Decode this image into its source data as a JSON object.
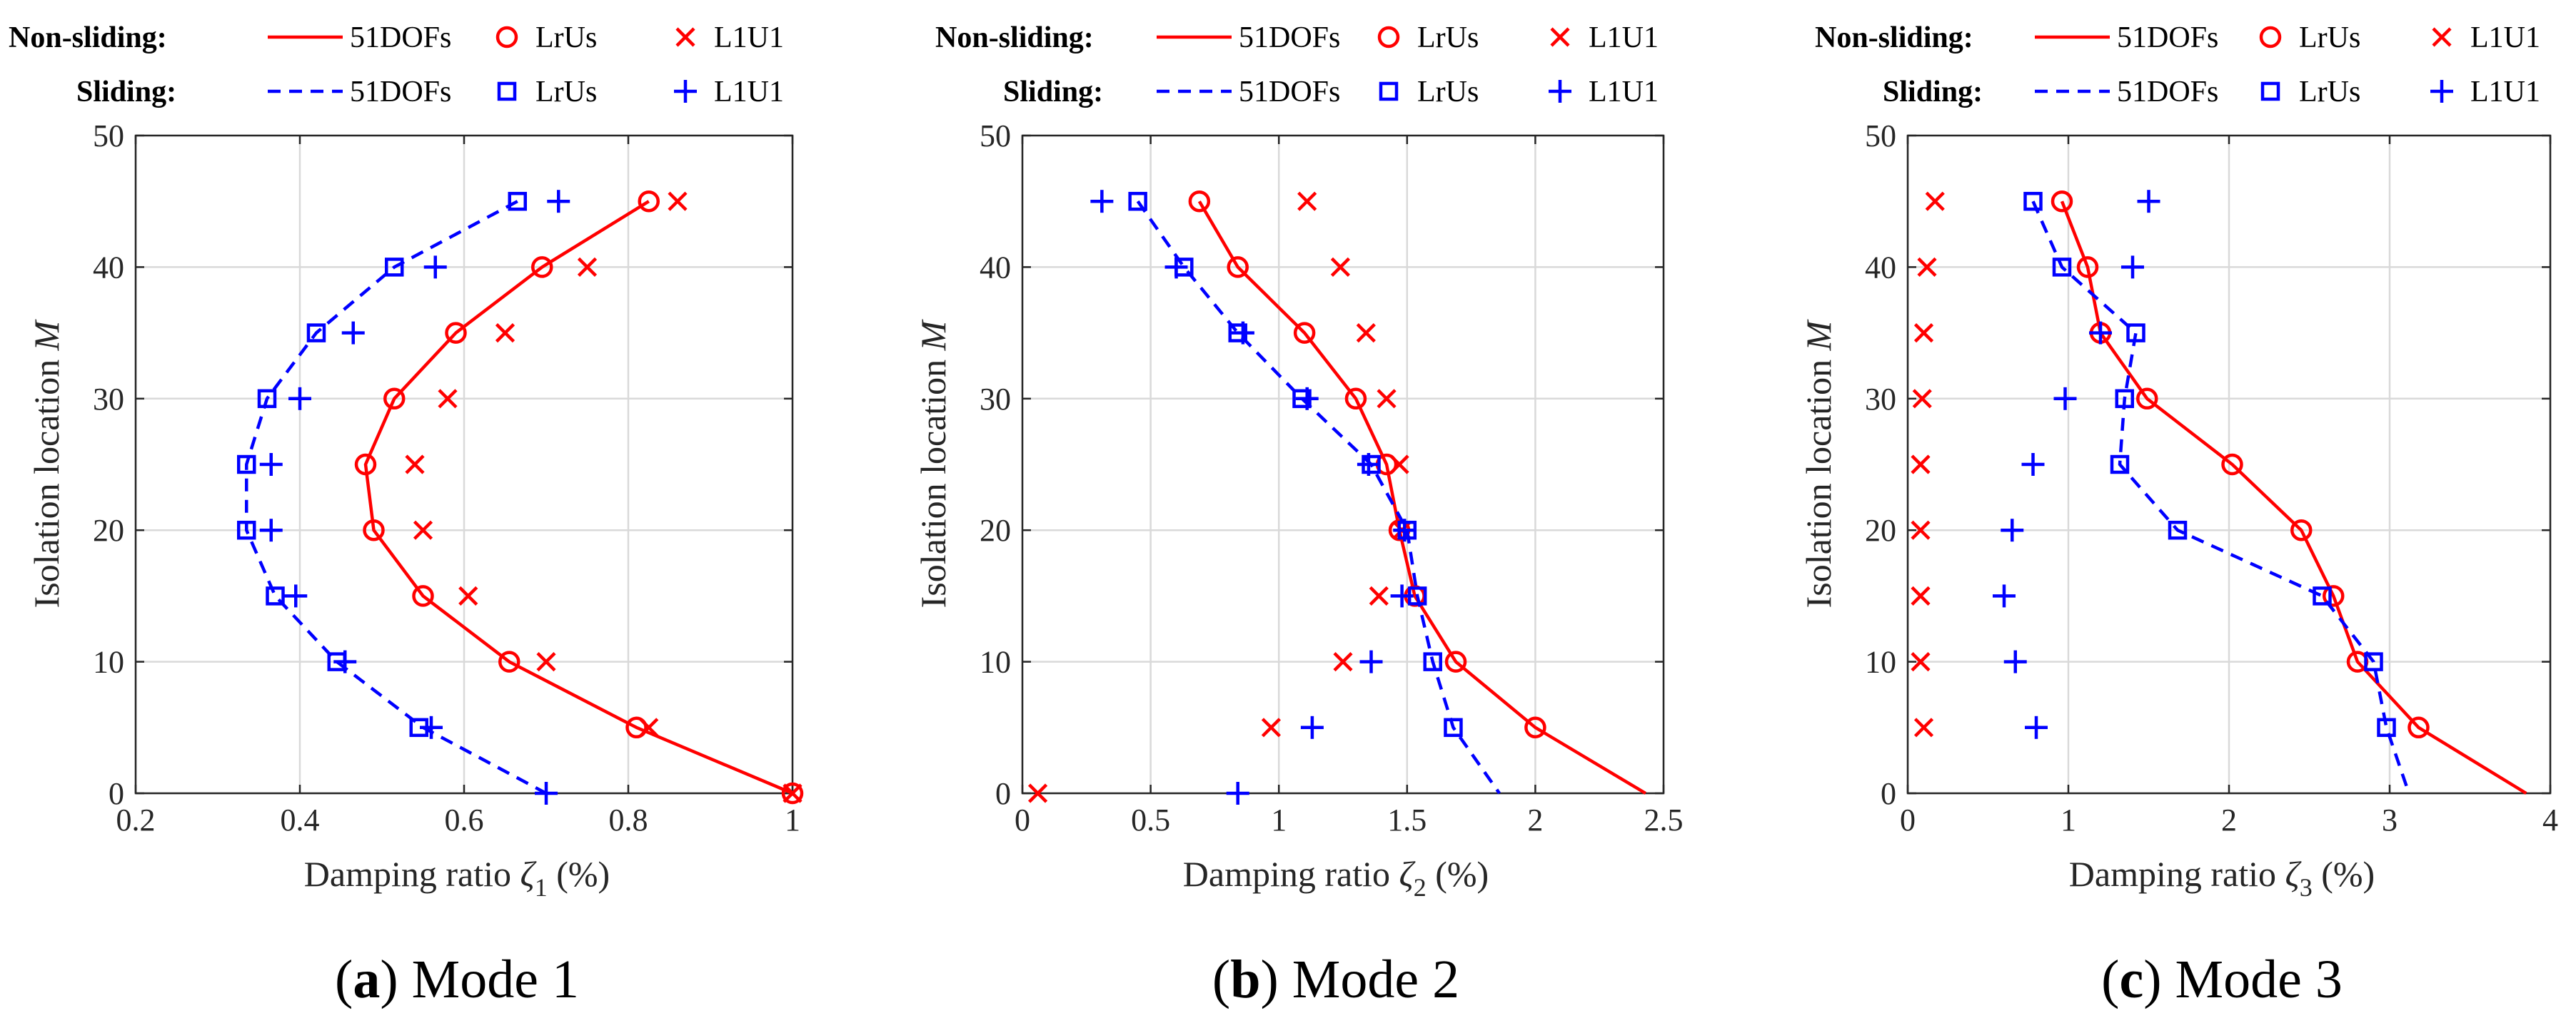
{
  "colors": {
    "non_sliding": "#ff0000",
    "sliding": "#0000ff",
    "axis": "#262626",
    "grid": "#d9d9d9"
  },
  "legend": {
    "non_sliding_header": "Non-sliding:",
    "sliding_header": "Sliding:",
    "series_labels": [
      "51DOFs",
      "LrUs",
      "L1U1"
    ]
  },
  "chart_data": [
    {
      "type": "line",
      "caption_letter": "a",
      "caption_text": "Mode 1",
      "xlabel": "Damping ratio",
      "xlabel_symbol": "ζ",
      "xlabel_subscript": "1",
      "xlabel_unit": "(%)",
      "ylabel": "Isolation location",
      "ylabel_symbol": "M",
      "xlim": [
        0.2,
        1.0
      ],
      "ylim": [
        0,
        50
      ],
      "xticks": [
        0.2,
        0.4,
        0.6,
        0.8,
        1.0
      ],
      "xtick_labels": [
        "0.2",
        "0.4",
        "0.6",
        "0.8",
        "1"
      ],
      "yticks": [
        0,
        10,
        20,
        30,
        40,
        50
      ],
      "ytick_labels": [
        "0",
        "10",
        "20",
        "30",
        "40",
        "50"
      ],
      "grid": true,
      "series": [
        {
          "name": "51DOFs",
          "group": "Non-sliding",
          "style": "solid-line",
          "points": [
            [
              0.825,
              45
            ],
            [
              0.695,
              40
            ],
            [
              0.59,
              35
            ],
            [
              0.515,
              30
            ],
            [
              0.48,
              25
            ],
            [
              0.49,
              20
            ],
            [
              0.55,
              15
            ],
            [
              0.655,
              10
            ],
            [
              0.81,
              5
            ],
            [
              1.0,
              0
            ]
          ]
        },
        {
          "name": "LrUs",
          "group": "Non-sliding",
          "style": "circle",
          "points": [
            [
              0.825,
              45
            ],
            [
              0.695,
              40
            ],
            [
              0.59,
              35
            ],
            [
              0.515,
              30
            ],
            [
              0.48,
              25
            ],
            [
              0.49,
              20
            ],
            [
              0.55,
              15
            ],
            [
              0.655,
              10
            ],
            [
              0.81,
              5
            ],
            [
              1.0,
              0
            ]
          ]
        },
        {
          "name": "L1U1",
          "group": "Non-sliding",
          "style": "x",
          "points": [
            [
              0.86,
              45
            ],
            [
              0.75,
              40
            ],
            [
              0.65,
              35
            ],
            [
              0.58,
              30
            ],
            [
              0.54,
              25
            ],
            [
              0.55,
              20
            ],
            [
              0.605,
              15
            ],
            [
              0.7,
              10
            ],
            [
              0.825,
              5
            ],
            [
              1.0,
              0
            ]
          ]
        },
        {
          "name": "51DOFs",
          "group": "Sliding",
          "style": "dashed-line",
          "points": [
            [
              0.665,
              45
            ],
            [
              0.515,
              40
            ],
            [
              0.42,
              35
            ],
            [
              0.36,
              30
            ],
            [
              0.335,
              25
            ],
            [
              0.335,
              20
            ],
            [
              0.37,
              15
            ],
            [
              0.445,
              10
            ],
            [
              0.55,
              5
            ],
            [
              0.7,
              0
            ]
          ]
        },
        {
          "name": "LrUs",
          "group": "Sliding",
          "style": "square",
          "points": [
            [
              0.665,
              45
            ],
            [
              0.515,
              40
            ],
            [
              0.42,
              35
            ],
            [
              0.36,
              30
            ],
            [
              0.335,
              25
            ],
            [
              0.335,
              20
            ],
            [
              0.37,
              15
            ],
            [
              0.445,
              10
            ],
            [
              0.545,
              5
            ]
          ]
        },
        {
          "name": "L1U1",
          "group": "Sliding",
          "style": "plus",
          "points": [
            [
              0.715,
              45
            ],
            [
              0.565,
              40
            ],
            [
              0.465,
              35
            ],
            [
              0.4,
              30
            ],
            [
              0.365,
              25
            ],
            [
              0.365,
              20
            ],
            [
              0.395,
              15
            ],
            [
              0.455,
              10
            ],
            [
              0.56,
              5
            ],
            [
              0.7,
              0
            ]
          ]
        }
      ]
    },
    {
      "type": "line",
      "caption_letter": "b",
      "caption_text": "Mode 2",
      "xlabel": "Damping ratio",
      "xlabel_symbol": "ζ",
      "xlabel_subscript": "2",
      "xlabel_unit": "(%)",
      "ylabel": "Isolation location",
      "ylabel_symbol": "M",
      "xlim": [
        0,
        2.5
      ],
      "ylim": [
        0,
        50
      ],
      "xticks": [
        0,
        0.5,
        1.0,
        1.5,
        2.0,
        2.5
      ],
      "xtick_labels": [
        "0",
        "0.5",
        "1",
        "1.5",
        "2",
        "2.5"
      ],
      "yticks": [
        0,
        10,
        20,
        30,
        40,
        50
      ],
      "ytick_labels": [
        "0",
        "10",
        "20",
        "30",
        "40",
        "50"
      ],
      "grid": true,
      "series": [
        {
          "name": "51DOFs",
          "group": "Non-sliding",
          "style": "solid-line",
          "points": [
            [
              0.69,
              45
            ],
            [
              0.84,
              40
            ],
            [
              1.1,
              35
            ],
            [
              1.3,
              30
            ],
            [
              1.42,
              25
            ],
            [
              1.47,
              20
            ],
            [
              1.53,
              15
            ],
            [
              1.69,
              10
            ],
            [
              2.0,
              5
            ],
            [
              2.43,
              0
            ]
          ]
        },
        {
          "name": "LrUs",
          "group": "Non-sliding",
          "style": "circle",
          "points": [
            [
              0.69,
              45
            ],
            [
              0.84,
              40
            ],
            [
              1.1,
              35
            ],
            [
              1.3,
              30
            ],
            [
              1.42,
              25
            ],
            [
              1.47,
              20
            ],
            [
              1.53,
              15
            ],
            [
              1.69,
              10
            ],
            [
              2.0,
              5
            ]
          ]
        },
        {
          "name": "L1U1",
          "group": "Non-sliding",
          "style": "x",
          "points": [
            [
              1.11,
              45
            ],
            [
              1.24,
              40
            ],
            [
              1.34,
              35
            ],
            [
              1.42,
              30
            ],
            [
              1.47,
              25
            ],
            [
              1.48,
              20
            ],
            [
              1.39,
              15
            ],
            [
              1.25,
              10
            ],
            [
              0.97,
              5
            ],
            [
              0.06,
              0
            ]
          ]
        },
        {
          "name": "51DOFs",
          "group": "Sliding",
          "style": "dashed-line",
          "points": [
            [
              0.45,
              45
            ],
            [
              0.63,
              40
            ],
            [
              0.84,
              35
            ],
            [
              1.09,
              30
            ],
            [
              1.36,
              25
            ],
            [
              1.5,
              20
            ],
            [
              1.54,
              15
            ],
            [
              1.6,
              10
            ],
            [
              1.68,
              5
            ],
            [
              1.86,
              0
            ]
          ]
        },
        {
          "name": "LrUs",
          "group": "Sliding",
          "style": "square",
          "points": [
            [
              0.45,
              45
            ],
            [
              0.63,
              40
            ],
            [
              0.84,
              35
            ],
            [
              1.09,
              30
            ],
            [
              1.36,
              25
            ],
            [
              1.5,
              20
            ],
            [
              1.54,
              15
            ],
            [
              1.6,
              10
            ],
            [
              1.68,
              5
            ]
          ]
        },
        {
          "name": "L1U1",
          "group": "Sliding",
          "style": "plus",
          "points": [
            [
              0.31,
              45
            ],
            [
              0.6,
              40
            ],
            [
              0.86,
              35
            ],
            [
              1.11,
              30
            ],
            [
              1.35,
              25
            ],
            [
              1.49,
              20
            ],
            [
              1.48,
              15
            ],
            [
              1.36,
              10
            ],
            [
              1.13,
              5
            ],
            [
              0.84,
              0
            ]
          ]
        }
      ]
    },
    {
      "type": "line",
      "caption_letter": "c",
      "caption_text": "Mode 3",
      "xlabel": "Damping ratio",
      "xlabel_symbol": "ζ",
      "xlabel_subscript": "3",
      "xlabel_unit": "(%)",
      "ylabel": "Isolation location",
      "ylabel_symbol": "M",
      "xlim": [
        0,
        4
      ],
      "ylim": [
        0,
        50
      ],
      "xticks": [
        0,
        1,
        2,
        3,
        4
      ],
      "xtick_labels": [
        "0",
        "1",
        "2",
        "3",
        "4"
      ],
      "yticks": [
        0,
        10,
        20,
        30,
        40,
        50
      ],
      "ytick_labels": [
        "0",
        "10",
        "20",
        "30",
        "40",
        "50"
      ],
      "grid": true,
      "series": [
        {
          "name": "51DOFs",
          "group": "Non-sliding",
          "style": "solid-line",
          "points": [
            [
              0.96,
              45
            ],
            [
              1.12,
              40
            ],
            [
              1.2,
              35
            ],
            [
              1.49,
              30
            ],
            [
              2.02,
              25
            ],
            [
              2.45,
              20
            ],
            [
              2.65,
              15
            ],
            [
              2.8,
              10
            ],
            [
              3.18,
              5
            ],
            [
              3.85,
              0
            ]
          ]
        },
        {
          "name": "LrUs",
          "group": "Non-sliding",
          "style": "circle",
          "points": [
            [
              0.96,
              45
            ],
            [
              1.12,
              40
            ],
            [
              1.2,
              35
            ],
            [
              1.49,
              30
            ],
            [
              2.02,
              25
            ],
            [
              2.45,
              20
            ],
            [
              2.65,
              15
            ],
            [
              2.8,
              10
            ],
            [
              3.18,
              5
            ]
          ]
        },
        {
          "name": "L1U1",
          "group": "Non-sliding",
          "style": "x",
          "points": [
            [
              0.17,
              45
            ],
            [
              0.12,
              40
            ],
            [
              0.1,
              35
            ],
            [
              0.09,
              30
            ],
            [
              0.08,
              25
            ],
            [
              0.08,
              20
            ],
            [
              0.08,
              15
            ],
            [
              0.08,
              10
            ],
            [
              0.1,
              5
            ]
          ]
        },
        {
          "name": "51DOFs",
          "group": "Sliding",
          "style": "dashed-line",
          "points": [
            [
              0.78,
              45
            ],
            [
              0.96,
              40
            ],
            [
              1.42,
              35
            ],
            [
              1.35,
              30
            ],
            [
              1.32,
              25
            ],
            [
              1.68,
              20
            ],
            [
              2.58,
              15
            ],
            [
              2.9,
              10
            ],
            [
              2.98,
              5
            ],
            [
              3.12,
              0
            ]
          ]
        },
        {
          "name": "LrUs",
          "group": "Sliding",
          "style": "square",
          "points": [
            [
              0.78,
              45
            ],
            [
              0.96,
              40
            ],
            [
              1.42,
              35
            ],
            [
              1.35,
              30
            ],
            [
              1.32,
              25
            ],
            [
              1.68,
              20
            ],
            [
              2.58,
              15
            ],
            [
              2.9,
              10
            ],
            [
              2.98,
              5
            ]
          ]
        },
        {
          "name": "L1U1",
          "group": "Sliding",
          "style": "plus",
          "points": [
            [
              1.5,
              45
            ],
            [
              1.4,
              40
            ],
            [
              1.2,
              35
            ],
            [
              0.98,
              30
            ],
            [
              0.78,
              25
            ],
            [
              0.65,
              20
            ],
            [
              0.6,
              15
            ],
            [
              0.67,
              10
            ],
            [
              0.8,
              5
            ]
          ]
        }
      ]
    }
  ]
}
